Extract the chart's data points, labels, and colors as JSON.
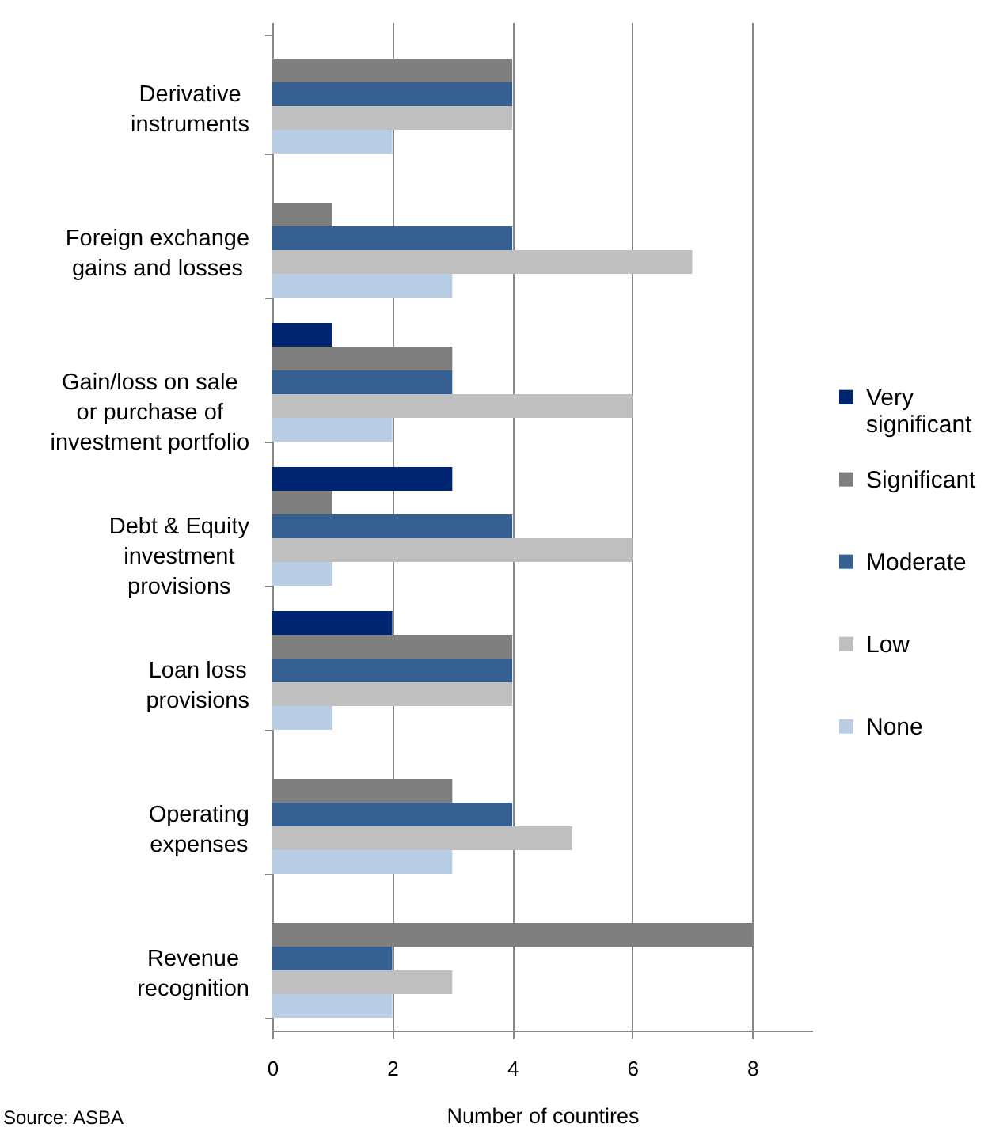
{
  "chart_data": {
    "type": "bar",
    "orientation": "horizontal",
    "categories": [
      "Derivative instruments",
      "Foreign exchange gains and losses",
      "Gain/loss on sale or purchase of investment portfolio",
      "Debt & Equity investment provisions",
      "Loan loss provisions",
      "Operating expenses",
      "Revenue recognition"
    ],
    "series": [
      {
        "name": "Very significant",
        "color": "#002672",
        "values": [
          null,
          null,
          1,
          3,
          2,
          null,
          null
        ]
      },
      {
        "name": "Significant",
        "color": "#7f7f7f",
        "values": [
          4,
          1,
          3,
          1,
          4,
          3,
          8
        ]
      },
      {
        "name": "Moderate",
        "color": "#376092",
        "values": [
          4,
          4,
          3,
          4,
          4,
          4,
          2
        ]
      },
      {
        "name": "Low",
        "color": "#bfbfbf",
        "values": [
          4,
          7,
          6,
          6,
          4,
          5,
          3
        ]
      },
      {
        "name": "None",
        "color": "#b9cde5",
        "values": [
          2,
          3,
          2,
          1,
          1,
          3,
          2
        ]
      }
    ],
    "xlabel": "Number of countires",
    "xlim": [
      0,
      9
    ],
    "xticks": [
      0,
      2,
      4,
      6,
      8
    ],
    "grid": "x",
    "legend": "right",
    "annotations": [
      "Source: ASBA"
    ]
  }
}
